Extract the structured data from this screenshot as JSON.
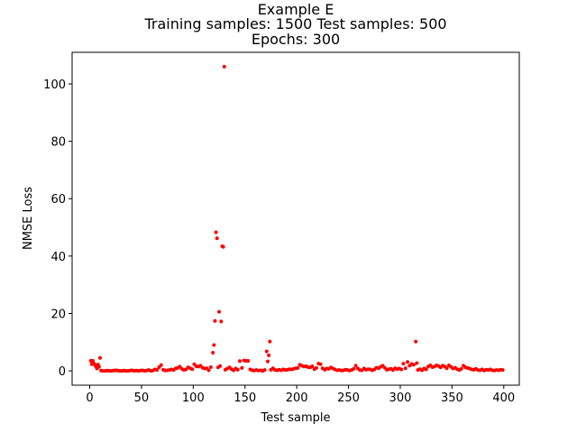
{
  "chart_data": {
    "type": "scatter",
    "title_lines": [
      "Example E",
      "Training samples: 1500   Test samples: 500",
      "Epochs: 300"
    ],
    "xlabel": "Test sample",
    "ylabel": "NMSE Loss",
    "xlim": [
      -17,
      415
    ],
    "ylim": [
      -5,
      111
    ],
    "xticks": [
      0,
      50,
      100,
      150,
      200,
      250,
      300,
      350,
      400
    ],
    "yticks": [
      0,
      20,
      40,
      60,
      80,
      100
    ],
    "marker_color": "#ff0000",
    "grid": false,
    "series": [
      {
        "points": [
          [
            1,
            3.5
          ],
          [
            2,
            2.3
          ],
          [
            3,
            3.5
          ],
          [
            4,
            2.6
          ],
          [
            5,
            2.1
          ],
          [
            6,
            1.5
          ],
          [
            7,
            0.8
          ],
          [
            8,
            2.2
          ],
          [
            9,
            1.4
          ],
          [
            10,
            4.5
          ],
          [
            11,
            0.1
          ],
          [
            13,
            0.0
          ],
          [
            15,
            0.0
          ],
          [
            17,
            0.1
          ],
          [
            19,
            0.0
          ],
          [
            21,
            0.0
          ],
          [
            23,
            0.1
          ],
          [
            25,
            0.2
          ],
          [
            27,
            0.1
          ],
          [
            29,
            0.0
          ],
          [
            31,
            0.0
          ],
          [
            33,
            0.1
          ],
          [
            35,
            0.0
          ],
          [
            37,
            0.0
          ],
          [
            39,
            0.1
          ],
          [
            41,
            0.2
          ],
          [
            43,
            0.0
          ],
          [
            45,
            0.1
          ],
          [
            47,
            0.0
          ],
          [
            49,
            0.1
          ],
          [
            51,
            0.2
          ],
          [
            53,
            0.0
          ],
          [
            55,
            0.1
          ],
          [
            57,
            0.3
          ],
          [
            59,
            0.0
          ],
          [
            61,
            0.1
          ],
          [
            63,
            0.5
          ],
          [
            65,
            0.3
          ],
          [
            67,
            1.3
          ],
          [
            69,
            2.0
          ],
          [
            71,
            0.4
          ],
          [
            73,
            0.1
          ],
          [
            75,
            0.2
          ],
          [
            77,
            0.3
          ],
          [
            79,
            0.5
          ],
          [
            81,
            0.3
          ],
          [
            83,
            0.8
          ],
          [
            85,
            1.0
          ],
          [
            87,
            1.5
          ],
          [
            89,
            0.7
          ],
          [
            91,
            0.3
          ],
          [
            93,
            0.5
          ],
          [
            95,
            1.2
          ],
          [
            97,
            0.9
          ],
          [
            99,
            0.6
          ],
          [
            101,
            2.3
          ],
          [
            103,
            1.6
          ],
          [
            105,
            1.5
          ],
          [
            107,
            1.8
          ],
          [
            109,
            1.1
          ],
          [
            111,
            0.8
          ],
          [
            113,
            0.9
          ],
          [
            115,
            0.2
          ],
          [
            117,
            1.3
          ],
          [
            119,
            6.3
          ],
          [
            120,
            9.0
          ],
          [
            121,
            17.4
          ],
          [
            122,
            48.3
          ],
          [
            123,
            46.2
          ],
          [
            124,
            1.2
          ],
          [
            125,
            20.6
          ],
          [
            126,
            1.7
          ],
          [
            127,
            17.2
          ],
          [
            128,
            43.4
          ],
          [
            129,
            43.2
          ],
          [
            130,
            106.0
          ],
          [
            131,
            0.4
          ],
          [
            133,
            0.8
          ],
          [
            135,
            1.2
          ],
          [
            137,
            0.6
          ],
          [
            139,
            0.2
          ],
          [
            141,
            0.8
          ],
          [
            143,
            0.4
          ],
          [
            145,
            3.4
          ],
          [
            147,
            1.0
          ],
          [
            149,
            3.6
          ],
          [
            151,
            3.5
          ],
          [
            153,
            3.5
          ],
          [
            155,
            0.5
          ],
          [
            157,
            0.2
          ],
          [
            159,
            0.1
          ],
          [
            161,
            0.3
          ],
          [
            163,
            0.1
          ],
          [
            165,
            0.2
          ],
          [
            167,
            0.0
          ],
          [
            169,
            0.3
          ],
          [
            171,
            6.8
          ],
          [
            172,
            3.3
          ],
          [
            173,
            5.4
          ],
          [
            174,
            10.2
          ],
          [
            175,
            0.4
          ],
          [
            177,
            0.9
          ],
          [
            179,
            0.3
          ],
          [
            181,
            0.2
          ],
          [
            183,
            0.4
          ],
          [
            185,
            0.2
          ],
          [
            187,
            0.5
          ],
          [
            189,
            0.3
          ],
          [
            191,
            0.4
          ],
          [
            193,
            0.6
          ],
          [
            195,
            0.5
          ],
          [
            197,
            0.7
          ],
          [
            199,
            0.9
          ],
          [
            201,
            1.0
          ],
          [
            203,
            2.1
          ],
          [
            205,
            1.8
          ],
          [
            207,
            1.5
          ],
          [
            209,
            1.6
          ],
          [
            211,
            1.3
          ],
          [
            213,
            1.2
          ],
          [
            215,
            1.6
          ],
          [
            217,
            0.6
          ],
          [
            219,
            1.0
          ],
          [
            221,
            2.5
          ],
          [
            223,
            2.3
          ],
          [
            225,
            0.9
          ],
          [
            227,
            0.4
          ],
          [
            229,
            0.8
          ],
          [
            231,
            0.7
          ],
          [
            233,
            1.2
          ],
          [
            235,
            0.8
          ],
          [
            237,
            0.5
          ],
          [
            239,
            0.2
          ],
          [
            241,
            0.3
          ],
          [
            243,
            0.1
          ],
          [
            245,
            0.2
          ],
          [
            247,
            0.4
          ],
          [
            249,
            0.3
          ],
          [
            251,
            0.1
          ],
          [
            253,
            0.3
          ],
          [
            255,
            0.7
          ],
          [
            257,
            1.8
          ],
          [
            259,
            0.8
          ],
          [
            261,
            0.3
          ],
          [
            263,
            0.2
          ],
          [
            265,
            0.8
          ],
          [
            267,
            0.4
          ],
          [
            269,
            0.6
          ],
          [
            271,
            0.5
          ],
          [
            273,
            0.2
          ],
          [
            275,
            0.5
          ],
          [
            277,
            1.1
          ],
          [
            279,
            0.9
          ],
          [
            281,
            1.4
          ],
          [
            283,
            1.8
          ],
          [
            285,
            1.1
          ],
          [
            287,
            0.4
          ],
          [
            289,
            0.6
          ],
          [
            291,
            0.7
          ],
          [
            293,
            0.3
          ],
          [
            295,
            0.9
          ],
          [
            297,
            0.6
          ],
          [
            299,
            0.8
          ],
          [
            301,
            0.5
          ],
          [
            303,
            2.5
          ],
          [
            305,
            0.9
          ],
          [
            307,
            3.1
          ],
          [
            309,
            1.8
          ],
          [
            311,
            2.4
          ],
          [
            313,
            2.1
          ],
          [
            315,
            10.2
          ],
          [
            316,
            2.7
          ],
          [
            317,
            0.3
          ],
          [
            319,
            0.6
          ],
          [
            321,
            0.2
          ],
          [
            323,
            0.8
          ],
          [
            325,
            0.5
          ],
          [
            327,
            1.5
          ],
          [
            329,
            1.9
          ],
          [
            331,
            1.3
          ],
          [
            333,
            1.5
          ],
          [
            335,
            1.9
          ],
          [
            337,
            1.7
          ],
          [
            339,
            1.2
          ],
          [
            341,
            1.8
          ],
          [
            343,
            1.5
          ],
          [
            345,
            0.9
          ],
          [
            347,
            1.9
          ],
          [
            349,
            1.4
          ],
          [
            351,
            0.8
          ],
          [
            353,
            1.1
          ],
          [
            355,
            0.6
          ],
          [
            357,
            0.3
          ],
          [
            359,
            0.7
          ],
          [
            361,
            1.8
          ],
          [
            363,
            1.2
          ],
          [
            365,
            1.0
          ],
          [
            367,
            0.8
          ],
          [
            369,
            0.5
          ],
          [
            371,
            0.4
          ],
          [
            373,
            0.7
          ],
          [
            375,
            0.3
          ],
          [
            377,
            0.2
          ],
          [
            379,
            0.5
          ],
          [
            381,
            0.1
          ],
          [
            383,
            0.4
          ],
          [
            385,
            0.3
          ],
          [
            387,
            0.5
          ],
          [
            389,
            0.2
          ],
          [
            391,
            0.1
          ],
          [
            393,
            0.3
          ],
          [
            395,
            0.2
          ],
          [
            397,
            0.4
          ],
          [
            399,
            0.3
          ]
        ]
      }
    ]
  }
}
